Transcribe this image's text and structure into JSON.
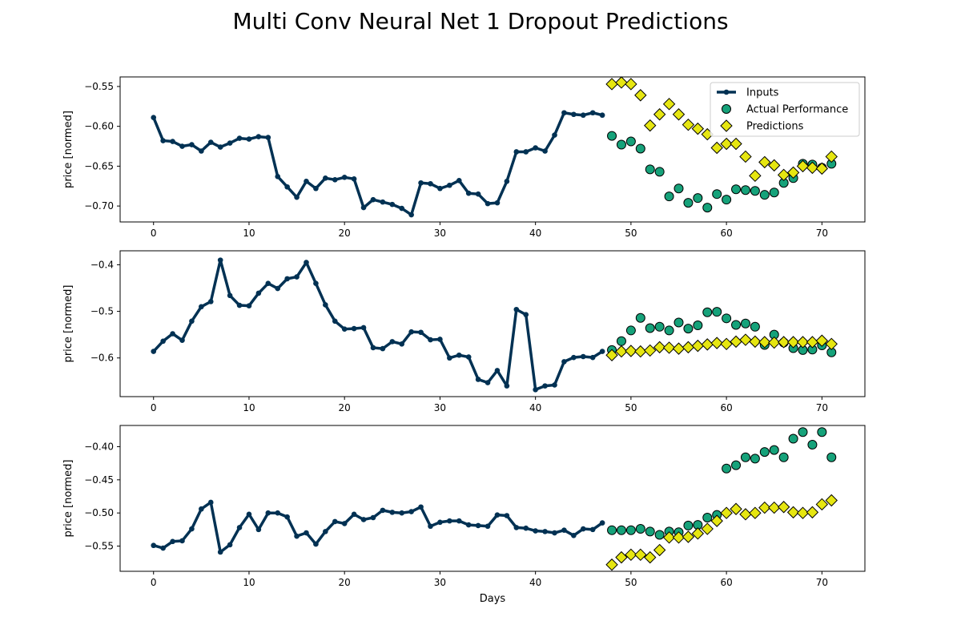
{
  "title": "Multi Conv Neural Net 1 Dropout Predictions",
  "colors": {
    "inputs": "#003153",
    "actual": "#16a27a",
    "predictions": "#e6e611",
    "marker_edge": "#000000"
  },
  "legend": {
    "placement": "top-right",
    "entries": [
      "Inputs",
      "Actual Performance",
      "Predictions"
    ]
  },
  "chart_data": [
    {
      "type": "line",
      "xlabel": "",
      "ylabel": "price [normed]",
      "xlim": [
        -3.5,
        74.5
      ],
      "ylim": [
        -0.72,
        -0.538
      ],
      "xticks": [
        0,
        10,
        20,
        30,
        40,
        50,
        60,
        70
      ],
      "yticks": [
        -0.7,
        -0.65,
        -0.6,
        -0.55
      ],
      "ytick_labels": [
        "−0.70",
        "−0.65",
        "−0.60",
        "−0.55"
      ],
      "series": [
        {
          "name": "Inputs",
          "x_start": 0,
          "values": [
            -0.589,
            -0.618,
            -0.619,
            -0.625,
            -0.623,
            -0.631,
            -0.62,
            -0.626,
            -0.621,
            -0.615,
            -0.616,
            -0.613,
            -0.614,
            -0.663,
            -0.676,
            -0.689,
            -0.669,
            -0.678,
            -0.665,
            -0.667,
            -0.664,
            -0.666,
            -0.702,
            -0.692,
            -0.695,
            -0.698,
            -0.703,
            -0.711,
            -0.671,
            -0.672,
            -0.678,
            -0.674,
            -0.668,
            -0.684,
            -0.685,
            -0.697,
            -0.696,
            -0.669,
            -0.632,
            -0.632,
            -0.627,
            -0.631,
            -0.611,
            -0.583,
            -0.585,
            -0.586,
            -0.583,
            -0.586
          ]
        },
        {
          "name": "Actual Performance",
          "x_start": 48,
          "values": [
            -0.612,
            -0.623,
            -0.619,
            -0.628,
            -0.654,
            -0.657,
            -0.688,
            -0.678,
            -0.696,
            -0.69,
            -0.702,
            -0.685,
            -0.692,
            -0.679,
            -0.68,
            -0.681,
            -0.686,
            -0.683,
            -0.671,
            -0.665,
            -0.647,
            -0.648,
            -0.652,
            -0.647
          ]
        },
        {
          "name": "Predictions",
          "x_start": 48,
          "values": [
            -0.547,
            -0.545,
            -0.547,
            -0.561,
            -0.599,
            -0.585,
            -0.572,
            -0.585,
            -0.598,
            -0.603,
            -0.61,
            -0.627,
            -0.622,
            -0.622,
            -0.638,
            -0.662,
            -0.645,
            -0.649,
            -0.661,
            -0.658,
            -0.65,
            -0.652,
            -0.653,
            -0.638
          ]
        }
      ]
    },
    {
      "type": "line",
      "xlabel": "",
      "ylabel": "price [normed]",
      "xlim": [
        -3.5,
        74.5
      ],
      "ylim": [
        -0.683,
        -0.37
      ],
      "xticks": [
        0,
        10,
        20,
        30,
        40,
        50,
        60,
        70
      ],
      "yticks": [
        -0.6,
        -0.5,
        -0.4
      ],
      "ytick_labels": [
        "−0.6",
        "−0.5",
        "−0.4"
      ],
      "series": [
        {
          "name": "Inputs",
          "x_start": 0,
          "values": [
            -0.586,
            -0.564,
            -0.548,
            -0.562,
            -0.521,
            -0.49,
            -0.479,
            -0.39,
            -0.466,
            -0.487,
            -0.488,
            -0.461,
            -0.44,
            -0.451,
            -0.43,
            -0.426,
            -0.395,
            -0.44,
            -0.486,
            -0.521,
            -0.538,
            -0.537,
            -0.535,
            -0.578,
            -0.58,
            -0.565,
            -0.57,
            -0.544,
            -0.545,
            -0.561,
            -0.56,
            -0.6,
            -0.594,
            -0.598,
            -0.646,
            -0.653,
            -0.627,
            -0.66,
            -0.496,
            -0.507,
            -0.668,
            -0.66,
            -0.658,
            -0.608,
            -0.599,
            -0.597,
            -0.599,
            -0.586
          ]
        },
        {
          "name": "Actual Performance",
          "x_start": 48,
          "values": [
            -0.583,
            -0.564,
            -0.541,
            -0.514,
            -0.536,
            -0.533,
            -0.541,
            -0.524,
            -0.537,
            -0.53,
            -0.502,
            -0.501,
            -0.515,
            -0.529,
            -0.526,
            -0.533,
            -0.572,
            -0.55,
            -0.567,
            -0.579,
            -0.583,
            -0.582,
            -0.573,
            -0.588
          ]
        },
        {
          "name": "Predictions",
          "x_start": 48,
          "values": [
            -0.594,
            -0.586,
            -0.585,
            -0.586,
            -0.584,
            -0.577,
            -0.578,
            -0.58,
            -0.577,
            -0.574,
            -0.571,
            -0.568,
            -0.57,
            -0.565,
            -0.561,
            -0.565,
            -0.566,
            -0.567,
            -0.566,
            -0.566,
            -0.566,
            -0.566,
            -0.563,
            -0.57
          ]
        }
      ]
    },
    {
      "type": "line",
      "xlabel": "Days",
      "ylabel": "price [normed]",
      "xlim": [
        -3.5,
        74.5
      ],
      "ylim": [
        -0.588,
        -0.368
      ],
      "xticks": [
        0,
        10,
        20,
        30,
        40,
        50,
        60,
        70
      ],
      "yticks": [
        -0.55,
        -0.5,
        -0.45,
        -0.4
      ],
      "ytick_labels": [
        "−0.55",
        "−0.50",
        "−0.45",
        "−0.40"
      ],
      "series": [
        {
          "name": "Inputs",
          "x_start": 0,
          "values": [
            -0.549,
            -0.553,
            -0.543,
            -0.542,
            -0.524,
            -0.494,
            -0.484,
            -0.559,
            -0.548,
            -0.522,
            -0.502,
            -0.525,
            -0.5,
            -0.5,
            -0.506,
            -0.535,
            -0.53,
            -0.547,
            -0.528,
            -0.513,
            -0.516,
            -0.502,
            -0.51,
            -0.507,
            -0.496,
            -0.499,
            -0.5,
            -0.498,
            -0.491,
            -0.52,
            -0.514,
            -0.512,
            -0.512,
            -0.518,
            -0.519,
            -0.52,
            -0.503,
            -0.504,
            -0.522,
            -0.523,
            -0.527,
            -0.528,
            -0.53,
            -0.526,
            -0.534,
            -0.524,
            -0.525,
            -0.515
          ]
        },
        {
          "name": "Actual Performance",
          "x_start": 48,
          "values": [
            -0.526,
            -0.526,
            -0.526,
            -0.524,
            -0.528,
            -0.533,
            -0.528,
            -0.529,
            -0.519,
            -0.518,
            -0.507,
            -0.503,
            -0.433,
            -0.428,
            -0.416,
            -0.418,
            -0.408,
            -0.405,
            -0.416,
            -0.388,
            -0.378,
            -0.397,
            -0.378,
            -0.416
          ]
        },
        {
          "name": "Predictions",
          "x_start": 48,
          "values": [
            -0.578,
            -0.567,
            -0.563,
            -0.563,
            -0.567,
            -0.556,
            -0.537,
            -0.537,
            -0.536,
            -0.531,
            -0.524,
            -0.512,
            -0.5,
            -0.494,
            -0.502,
            -0.5,
            -0.492,
            -0.492,
            -0.491,
            -0.499,
            -0.5,
            -0.499,
            -0.487,
            -0.481
          ]
        }
      ]
    }
  ]
}
